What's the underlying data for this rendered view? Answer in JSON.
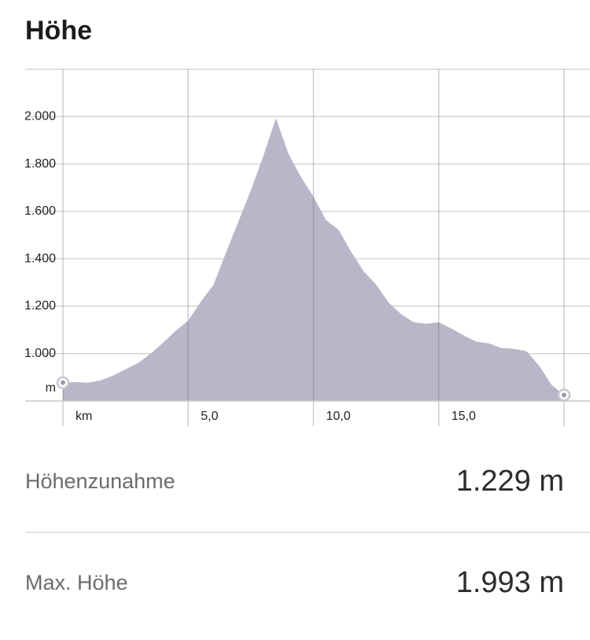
{
  "header": {
    "title": "Höhe"
  },
  "chart_data": {
    "type": "area",
    "x_label": "km",
    "y_label": "m",
    "x": [
      0,
      0.5,
      1,
      1.5,
      2,
      2.5,
      3,
      3.5,
      4,
      4.5,
      5,
      5.5,
      6,
      6.5,
      7,
      7.5,
      8,
      8.5,
      9,
      9.5,
      10,
      10.5,
      11,
      11.5,
      12,
      12.5,
      13,
      13.5,
      14,
      14.5,
      15,
      15.5,
      16,
      16.5,
      17,
      17.5,
      18,
      18.5,
      19,
      19.5,
      20
    ],
    "values": [
      877,
      880,
      877,
      887,
      907,
      934,
      960,
      1000,
      1046,
      1096,
      1139,
      1219,
      1288,
      1424,
      1556,
      1689,
      1834,
      1993,
      1844,
      1745,
      1662,
      1563,
      1523,
      1430,
      1348,
      1291,
      1215,
      1166,
      1132,
      1126,
      1132,
      1106,
      1076,
      1050,
      1043,
      1023,
      1020,
      1010,
      950,
      868,
      825
    ],
    "color": "#b8b7c9",
    "xlim": [
      0,
      20
    ],
    "ylim": [
      800,
      2200
    ],
    "xticks": [
      {
        "value": 5,
        "label": "5,0"
      },
      {
        "value": 10,
        "label": "10,0"
      },
      {
        "value": 15,
        "label": "15,0"
      }
    ],
    "yticks": [
      {
        "value": 1000,
        "label": "1.000"
      },
      {
        "value": 1200,
        "label": "1.200"
      },
      {
        "value": 1400,
        "label": "1.400"
      },
      {
        "value": 1600,
        "label": "1.600"
      },
      {
        "value": 1800,
        "label": "1.800"
      },
      {
        "value": 2000,
        "label": "2.000"
      }
    ],
    "grid": true
  },
  "stats": [
    {
      "label": "Höhenzunahme",
      "value": "1.229 m"
    },
    {
      "label": "Max. Höhe",
      "value": "1.993 m"
    }
  ]
}
